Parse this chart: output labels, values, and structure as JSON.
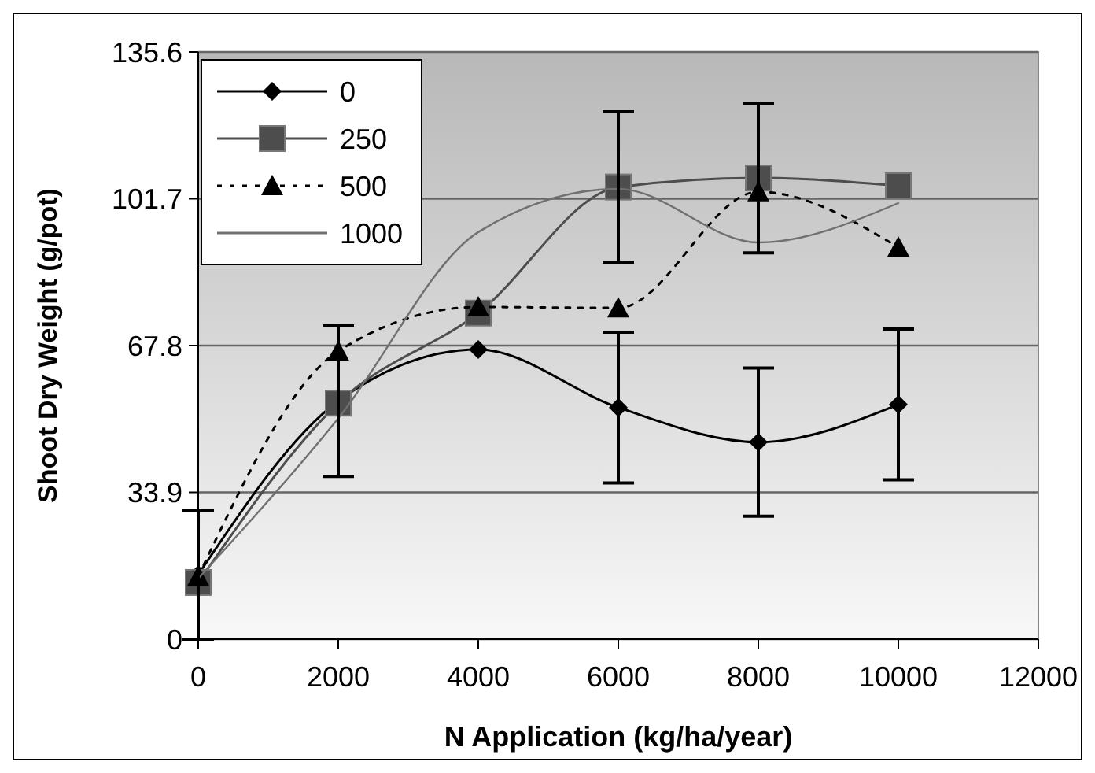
{
  "chart_data": {
    "type": "line",
    "xlabel": "N Application (kg/ha/year)",
    "ylabel": "Shoot Dry Weight (g/pot)",
    "x": [
      0,
      2000,
      4000,
      6000,
      8000,
      10000
    ],
    "series": [
      {
        "name": "0",
        "color": "#000000",
        "marker": "diamond",
        "line_style": "solid",
        "values": [
          14.9,
          55,
          66.9,
          53.5,
          45.5,
          54.2
        ],
        "errors": [
          14.9,
          17.4,
          null,
          17.4,
          17.1,
          17.4
        ]
      },
      {
        "name": "250",
        "color": "#4d4d4d",
        "marker": "square",
        "line_style": "solid",
        "values": [
          13.1,
          54.5,
          75.3,
          104.4,
          106.5,
          104.7
        ],
        "errors": [
          null,
          null,
          null,
          17.4,
          17.3,
          null
        ]
      },
      {
        "name": "500",
        "color": "#000000",
        "marker": "triangle",
        "line_style": "dotted",
        "values": [
          14.5,
          66.5,
          76.7,
          76.5,
          103.3,
          90.5
        ]
      },
      {
        "name": "1000",
        "color": "#707070",
        "marker": "none",
        "line_style": "solid",
        "values": [
          14,
          51,
          94,
          104,
          91.6,
          100.7
        ]
      }
    ],
    "xlim": [
      0,
      12000
    ],
    "xticks": [
      0,
      2000,
      4000,
      6000,
      8000,
      10000,
      12000
    ],
    "ylim": [
      0,
      135.6
    ],
    "yticks": [
      0,
      33.9,
      67.8,
      101.7,
      135.6
    ],
    "grid": "y",
    "legend": "top left"
  }
}
